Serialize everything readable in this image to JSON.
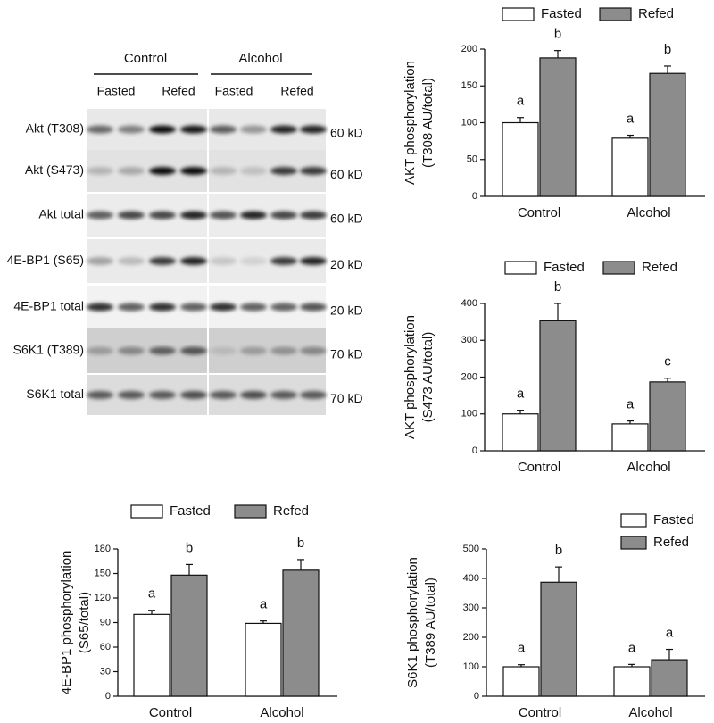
{
  "blot": {
    "groups": [
      "Control",
      "Alcohol"
    ],
    "conditions": [
      "Fasted",
      "Refed",
      "Fasted",
      "Refed"
    ],
    "rows": [
      {
        "label": "Akt (T308)",
        "size": "60 kD"
      },
      {
        "label": "Akt (S473)",
        "size": "60 kD"
      },
      {
        "label": "Akt total",
        "size": "60 kD"
      },
      {
        "label": "4E-BP1 (S65)",
        "size": "20 kD"
      },
      {
        "label": "4E-BP1 total",
        "size": "20 kD"
      },
      {
        "label": "S6K1 (T389)",
        "size": "70 kD"
      },
      {
        "label": "S6K1 total",
        "size": "70 kD"
      }
    ]
  },
  "chart_data": [
    {
      "type": "bar",
      "y_label": [
        "AKT phosphorylation",
        "(T308 AU/total)"
      ],
      "categories": [
        "Control",
        "Alcohol"
      ],
      "legend": "top",
      "series": [
        {
          "name": "Fasted",
          "color": "#ffffff",
          "values": [
            100,
            79
          ],
          "errors": [
            7,
            4
          ],
          "letters": [
            "a",
            "a"
          ]
        },
        {
          "name": "Refed",
          "color": "#8c8c8c",
          "values": [
            188,
            167
          ],
          "errors": [
            10,
            10
          ],
          "letters": [
            "b",
            "b"
          ]
        }
      ],
      "ylim": [
        0,
        200
      ],
      "yticks": [
        0,
        50,
        100,
        150,
        200
      ]
    },
    {
      "type": "bar",
      "y_label": [
        "AKT phosphorylation",
        "(S473 AU/total)"
      ],
      "categories": [
        "Control",
        "Alcohol"
      ],
      "legend": "top",
      "series": [
        {
          "name": "Fasted",
          "color": "#ffffff",
          "values": [
            100,
            73
          ],
          "errors": [
            10,
            8
          ],
          "letters": [
            "a",
            "a"
          ]
        },
        {
          "name": "Refed",
          "color": "#8c8c8c",
          "values": [
            353,
            187
          ],
          "errors": [
            47,
            10
          ],
          "letters": [
            "b",
            "c"
          ]
        }
      ],
      "ylim": [
        0,
        400
      ],
      "yticks": [
        0,
        100,
        200,
        300,
        400
      ]
    },
    {
      "type": "bar",
      "y_label": [
        "4E-BP1 phosphorylation",
        "(S65/total)"
      ],
      "categories": [
        "Control",
        "Alcohol"
      ],
      "legend": "top",
      "series": [
        {
          "name": "Fasted",
          "color": "#ffffff",
          "values": [
            100,
            89
          ],
          "errors": [
            5,
            3
          ],
          "letters": [
            "a",
            "a"
          ]
        },
        {
          "name": "Refed",
          "color": "#8c8c8c",
          "values": [
            148,
            154
          ],
          "errors": [
            13,
            13
          ],
          "letters": [
            "b",
            "b"
          ]
        }
      ],
      "ylim": [
        0,
        180
      ],
      "yticks": [
        0,
        30,
        60,
        90,
        120,
        150,
        180
      ]
    },
    {
      "type": "bar",
      "y_label": [
        "S6K1 phosphorylation",
        "(T389 AU/total)"
      ],
      "categories": [
        "Control",
        "Alcohol"
      ],
      "legend": "top-right",
      "series": [
        {
          "name": "Fasted",
          "color": "#ffffff",
          "values": [
            100,
            100
          ],
          "errors": [
            7,
            8
          ],
          "letters": [
            "a",
            "a"
          ]
        },
        {
          "name": "Refed",
          "color": "#8c8c8c",
          "values": [
            387,
            124
          ],
          "errors": [
            52,
            35
          ],
          "letters": [
            "b",
            "a"
          ]
        }
      ],
      "ylim": [
        0,
        500
      ],
      "yticks": [
        0,
        100,
        200,
        300,
        400,
        500
      ]
    }
  ]
}
